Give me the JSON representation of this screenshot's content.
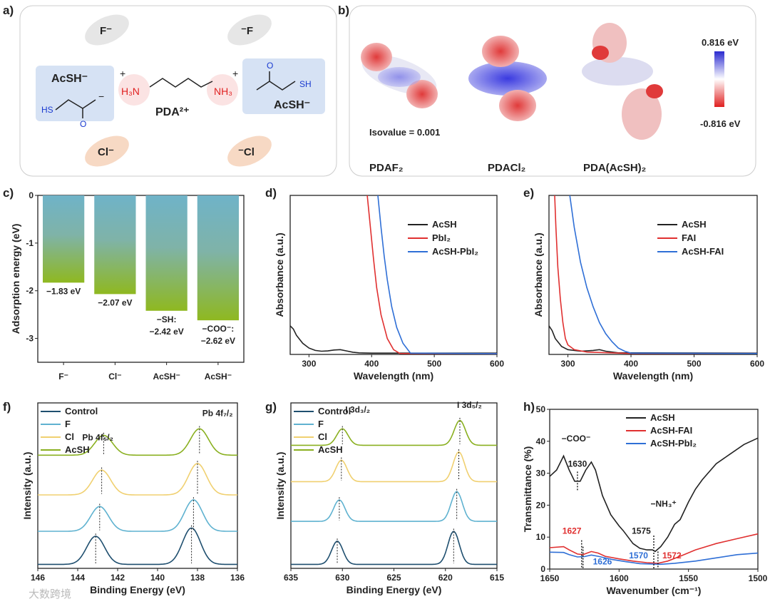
{
  "panels": {
    "a": "a)",
    "b": "b)",
    "c": "c)",
    "d": "d)",
    "e": "e)",
    "f": "f)",
    "g": "g)",
    "h": "h)"
  },
  "panel_a": {
    "anion_f_left": "F⁻",
    "anion_f_right": "⁻F",
    "anion_cl_left": "Cl⁻",
    "anion_cl_right": "⁻Cl",
    "acsh_left": "AcSH⁻",
    "acsh_right": "AcSH⁻",
    "pda": "PDA²⁺",
    "h3n": "H₃N",
    "nh3": "NH₃",
    "plus": "+",
    "minus": "−",
    "hs": "HS",
    "sh": "SH",
    "o": "O"
  },
  "panel_b": {
    "scale_max": "0.816 eV",
    "scale_min": "-0.816 eV",
    "isovalue": "Isovalue = 0.001",
    "mol1": "PDAF₂",
    "mol2": "PDACl₂",
    "mol3": "PDA(AcSH)₂",
    "colors": {
      "pos": "#3b3bd6",
      "neg": "#e03a3a"
    }
  },
  "watermark": "大数跨境",
  "chart_data": [
    {
      "id": "c",
      "type": "bar",
      "ylabel": "Adsorption energy (eV)",
      "xlabel": "",
      "categories": [
        "F⁻",
        "Cl⁻",
        "AcSH⁻",
        "AcSH⁻"
      ],
      "values": [
        -1.83,
        -2.07,
        -2.42,
        -2.62
      ],
      "data_labels": [
        [
          "−1.83 eV"
        ],
        [
          "−2.07 eV"
        ],
        [
          "−SH:",
          "−2.42 eV"
        ],
        [
          "−COO⁻:",
          "−2.62 eV"
        ]
      ],
      "ylim": [
        -3.5,
        0
      ],
      "yticks": [
        0,
        -1,
        -2,
        -3
      ],
      "colors": {
        "top": "#6fb3c8",
        "bottom": "#8fb820"
      }
    },
    {
      "id": "d",
      "type": "line",
      "xlabel": "Wavelength (nm)",
      "ylabel": "Absorbance (a.u.)",
      "xlim": [
        270,
        600
      ],
      "ylim": [
        0,
        1
      ],
      "xticks": [
        300,
        400,
        500,
        600
      ],
      "legend": "top-right",
      "series": [
        {
          "name": "AcSH",
          "color": "#222222",
          "x": [
            270,
            275,
            280,
            290,
            300,
            310,
            320,
            330,
            340,
            350,
            360,
            370,
            380,
            400,
            600
          ],
          "y": [
            0.18,
            0.16,
            0.12,
            0.07,
            0.04,
            0.025,
            0.02,
            0.022,
            0.028,
            0.03,
            0.022,
            0.014,
            0.01,
            0.008,
            0.008
          ]
        },
        {
          "name": "PbI₂",
          "color": "#e03030",
          "x": [
            393,
            398,
            403,
            408,
            415,
            425,
            435,
            445,
            600
          ],
          "y": [
            1,
            0.8,
            0.6,
            0.42,
            0.25,
            0.1,
            0.03,
            0.006,
            0.005
          ]
        },
        {
          "name": "AcSH-PbI₂",
          "color": "#2f6fd6",
          "x": [
            410,
            415,
            420,
            425,
            432,
            440,
            450,
            462,
            600
          ],
          "y": [
            1,
            0.8,
            0.62,
            0.47,
            0.3,
            0.17,
            0.07,
            0.008,
            0.005
          ]
        }
      ]
    },
    {
      "id": "e",
      "type": "line",
      "xlabel": "Wavelength (nm)",
      "ylabel": "Absorbance (a.u.)",
      "xlim": [
        270,
        600
      ],
      "ylim": [
        0,
        1
      ],
      "xticks": [
        300,
        400,
        500,
        600
      ],
      "legend": "top-right",
      "series": [
        {
          "name": "AcSH",
          "color": "#222222",
          "x": [
            270,
            275,
            280,
            290,
            300,
            320,
            340,
            350,
            360,
            380,
            600
          ],
          "y": [
            0.18,
            0.15,
            0.1,
            0.05,
            0.03,
            0.02,
            0.025,
            0.03,
            0.02,
            0.01,
            0.008
          ]
        },
        {
          "name": "FAI",
          "color": "#e03030",
          "x": [
            279,
            281,
            284,
            288,
            292,
            296,
            300,
            310,
            330,
            400,
            600
          ],
          "y": [
            1,
            0.8,
            0.55,
            0.35,
            0.2,
            0.1,
            0.06,
            0.03,
            0.015,
            0.006,
            0.006
          ]
        },
        {
          "name": "AcSH-FAI",
          "color": "#2f6fd6",
          "x": [
            303,
            310,
            320,
            330,
            340,
            350,
            360,
            370,
            380,
            390,
            400,
            600
          ],
          "y": [
            1,
            0.8,
            0.58,
            0.42,
            0.3,
            0.2,
            0.13,
            0.08,
            0.04,
            0.02,
            0.008,
            0.006
          ]
        }
      ]
    },
    {
      "id": "f",
      "type": "line",
      "subtype": "stacked-xps",
      "xlabel": "Binding Energy (eV)",
      "ylabel": "Intensity (a.u.)",
      "xlim": [
        146,
        136
      ],
      "ylim": [
        0,
        5
      ],
      "xticks": [
        146,
        144,
        142,
        140,
        138,
        136
      ],
      "legend": "top-left",
      "annotations": [
        "Pb 4f₅/₂",
        "Pb 4f₇/₂"
      ],
      "peak_width": 0.45,
      "series": [
        {
          "name": "Control",
          "color": "#1f4f6f",
          "offset": 0,
          "peaks": [
            143.1,
            138.3
          ],
          "heights": [
            0.85,
            1.1
          ]
        },
        {
          "name": "F",
          "color": "#5fb2d0",
          "offset": 1.0,
          "peaks": [
            142.9,
            138.2
          ],
          "heights": [
            0.75,
            0.95
          ]
        },
        {
          "name": "Cl",
          "color": "#f0d070",
          "offset": 2.1,
          "peaks": [
            142.8,
            138.0
          ],
          "heights": [
            0.75,
            0.95
          ]
        },
        {
          "name": "AcSH",
          "color": "#8ab020",
          "offset": 3.3,
          "peaks": [
            142.7,
            137.9
          ],
          "heights": [
            0.6,
            0.8
          ]
        }
      ]
    },
    {
      "id": "g",
      "type": "line",
      "subtype": "stacked-xps",
      "xlabel": "Binding Energy (eV)",
      "ylabel": "Intensity (a.u.)",
      "xlim": [
        635,
        615
      ],
      "ylim": [
        0,
        5
      ],
      "xticks": [
        635,
        630,
        625,
        620,
        615
      ],
      "legend": "top-left",
      "annotations": [
        "I 3d₃/₂",
        "I 3d₅/₂"
      ],
      "peak_width": 0.55,
      "series": [
        {
          "name": "Control",
          "color": "#1f4f6f",
          "offset": 0,
          "peaks": [
            630.5,
            619.2
          ],
          "heights": [
            0.7,
            1.0
          ]
        },
        {
          "name": "F",
          "color": "#5fb2d0",
          "offset": 1.3,
          "peaks": [
            630.3,
            618.9
          ],
          "heights": [
            0.65,
            0.9
          ]
        },
        {
          "name": "Cl",
          "color": "#f0d070",
          "offset": 2.5,
          "peaks": [
            630.1,
            618.7
          ],
          "heights": [
            0.65,
            0.9
          ]
        },
        {
          "name": "AcSH",
          "color": "#8ab020",
          "offset": 3.6,
          "peaks": [
            630.0,
            618.6
          ],
          "heights": [
            0.5,
            0.75
          ]
        }
      ]
    },
    {
      "id": "h",
      "type": "line",
      "xlabel": "Wavenumber (cm⁻¹)",
      "ylabel": "Transmittance (%)",
      "xlim": [
        1650,
        1500
      ],
      "ylim": [
        0,
        50
      ],
      "xticks": [
        1650,
        1600,
        1550,
        1500
      ],
      "yticks": [
        0,
        10,
        20,
        30,
        40,
        50
      ],
      "legend": "top-right",
      "annotations": [
        {
          "text": "−COO⁻",
          "x": 1631,
          "y": 40,
          "color": "#222222"
        },
        {
          "text": "1630",
          "x": 1630,
          "y": 32,
          "color": "#222222"
        },
        {
          "text": "−NH₃⁺",
          "x": 1568,
          "y": 19.5,
          "color": "#222222"
        },
        {
          "text": "1575",
          "x": 1584,
          "y": 11,
          "color": "#222222"
        },
        {
          "text": "1627",
          "x": 1634,
          "y": 11,
          "color": "#e03030"
        },
        {
          "text": "1626",
          "x": 1612,
          "y": 1.5,
          "color": "#2f6fd6"
        },
        {
          "text": "1570",
          "x": 1586,
          "y": 3.3,
          "color": "#2f6fd6"
        },
        {
          "text": "1572",
          "x": 1562,
          "y": 3.3,
          "color": "#e03030"
        }
      ],
      "series": [
        {
          "name": "AcSH",
          "color": "#222222",
          "x": [
            1650,
            1645,
            1640,
            1636,
            1632,
            1628,
            1624,
            1620,
            1617,
            1612,
            1606,
            1600,
            1597,
            1590,
            1585,
            1580,
            1576,
            1574,
            1570,
            1565,
            1560,
            1556,
            1550,
            1545,
            1540,
            1530,
            1520,
            1510,
            1500
          ],
          "y": [
            29,
            31,
            35.4,
            31,
            27.5,
            27.5,
            31,
            33.5,
            31,
            23,
            17,
            13.5,
            12,
            8,
            6.5,
            6,
            6,
            5.5,
            7,
            10,
            14,
            15.5,
            21,
            25,
            28,
            33,
            36,
            39,
            41
          ]
        },
        {
          "name": "AcSH-FAI",
          "color": "#e03030",
          "x": [
            1650,
            1640,
            1636,
            1630,
            1626,
            1620,
            1615,
            1610,
            1600,
            1590,
            1580,
            1572,
            1565,
            1555,
            1545,
            1530,
            1515,
            1500
          ],
          "y": [
            6.7,
            7,
            6,
            4.7,
            4.5,
            5.5,
            5,
            4,
            3.2,
            2.5,
            2,
            1.8,
            2.5,
            4.2,
            6,
            8,
            9.5,
            11
          ]
        },
        {
          "name": "AcSH-PbI₂",
          "color": "#2f6fd6",
          "x": [
            1650,
            1640,
            1636,
            1630,
            1625,
            1620,
            1615,
            1605,
            1595,
            1585,
            1570,
            1560,
            1545,
            1530,
            1515,
            1500
          ],
          "y": [
            5.3,
            5.2,
            4.5,
            3.8,
            3.9,
            4.4,
            4,
            3,
            2.3,
            1.7,
            1.5,
            1.8,
            2.5,
            3.5,
            4.5,
            5
          ]
        }
      ]
    }
  ]
}
